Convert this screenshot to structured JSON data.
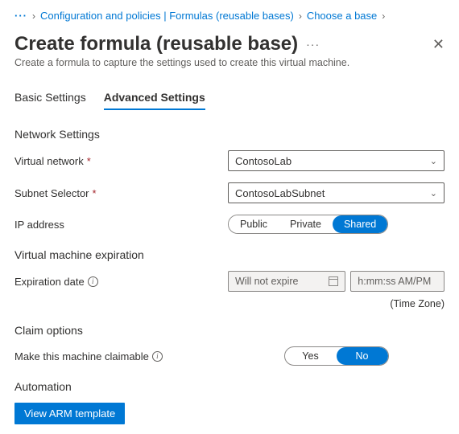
{
  "breadcrumb": {
    "dots": "···",
    "item1": "Configuration and policies | Formulas (reusable bases)",
    "item2": "Choose a base",
    "sep": "›"
  },
  "header": {
    "title": "Create formula (reusable base)",
    "more": "···",
    "subtitle": "Create a formula to capture the settings used to create this virtual machine."
  },
  "tabs": {
    "basic": "Basic Settings",
    "advanced": "Advanced Settings"
  },
  "network": {
    "heading": "Network Settings",
    "vnet_label": "Virtual network",
    "vnet_value": "ContosoLab",
    "subnet_label": "Subnet Selector",
    "subnet_value": "ContosoLabSubnet",
    "ip_label": "IP address",
    "ip_options": {
      "public": "Public",
      "private": "Private",
      "shared": "Shared"
    },
    "ip_selected": "Shared",
    "required_marker": "*"
  },
  "expiration": {
    "heading": "Virtual machine expiration",
    "date_label": "Expiration date",
    "date_value": "Will not expire",
    "time_placeholder": "h:mm:ss AM/PM",
    "timezone_note": "(Time Zone)"
  },
  "claim": {
    "heading": "Claim options",
    "label": "Make this machine claimable",
    "yes": "Yes",
    "no": "No",
    "selected": "No"
  },
  "automation": {
    "heading": "Automation",
    "button": "View ARM template"
  },
  "colors": {
    "accent": "#0078d4",
    "text": "#323130",
    "muted": "#605e5c",
    "required": "#a4262c",
    "disabled_bg": "#f3f2f1",
    "border": "#8a8886"
  }
}
